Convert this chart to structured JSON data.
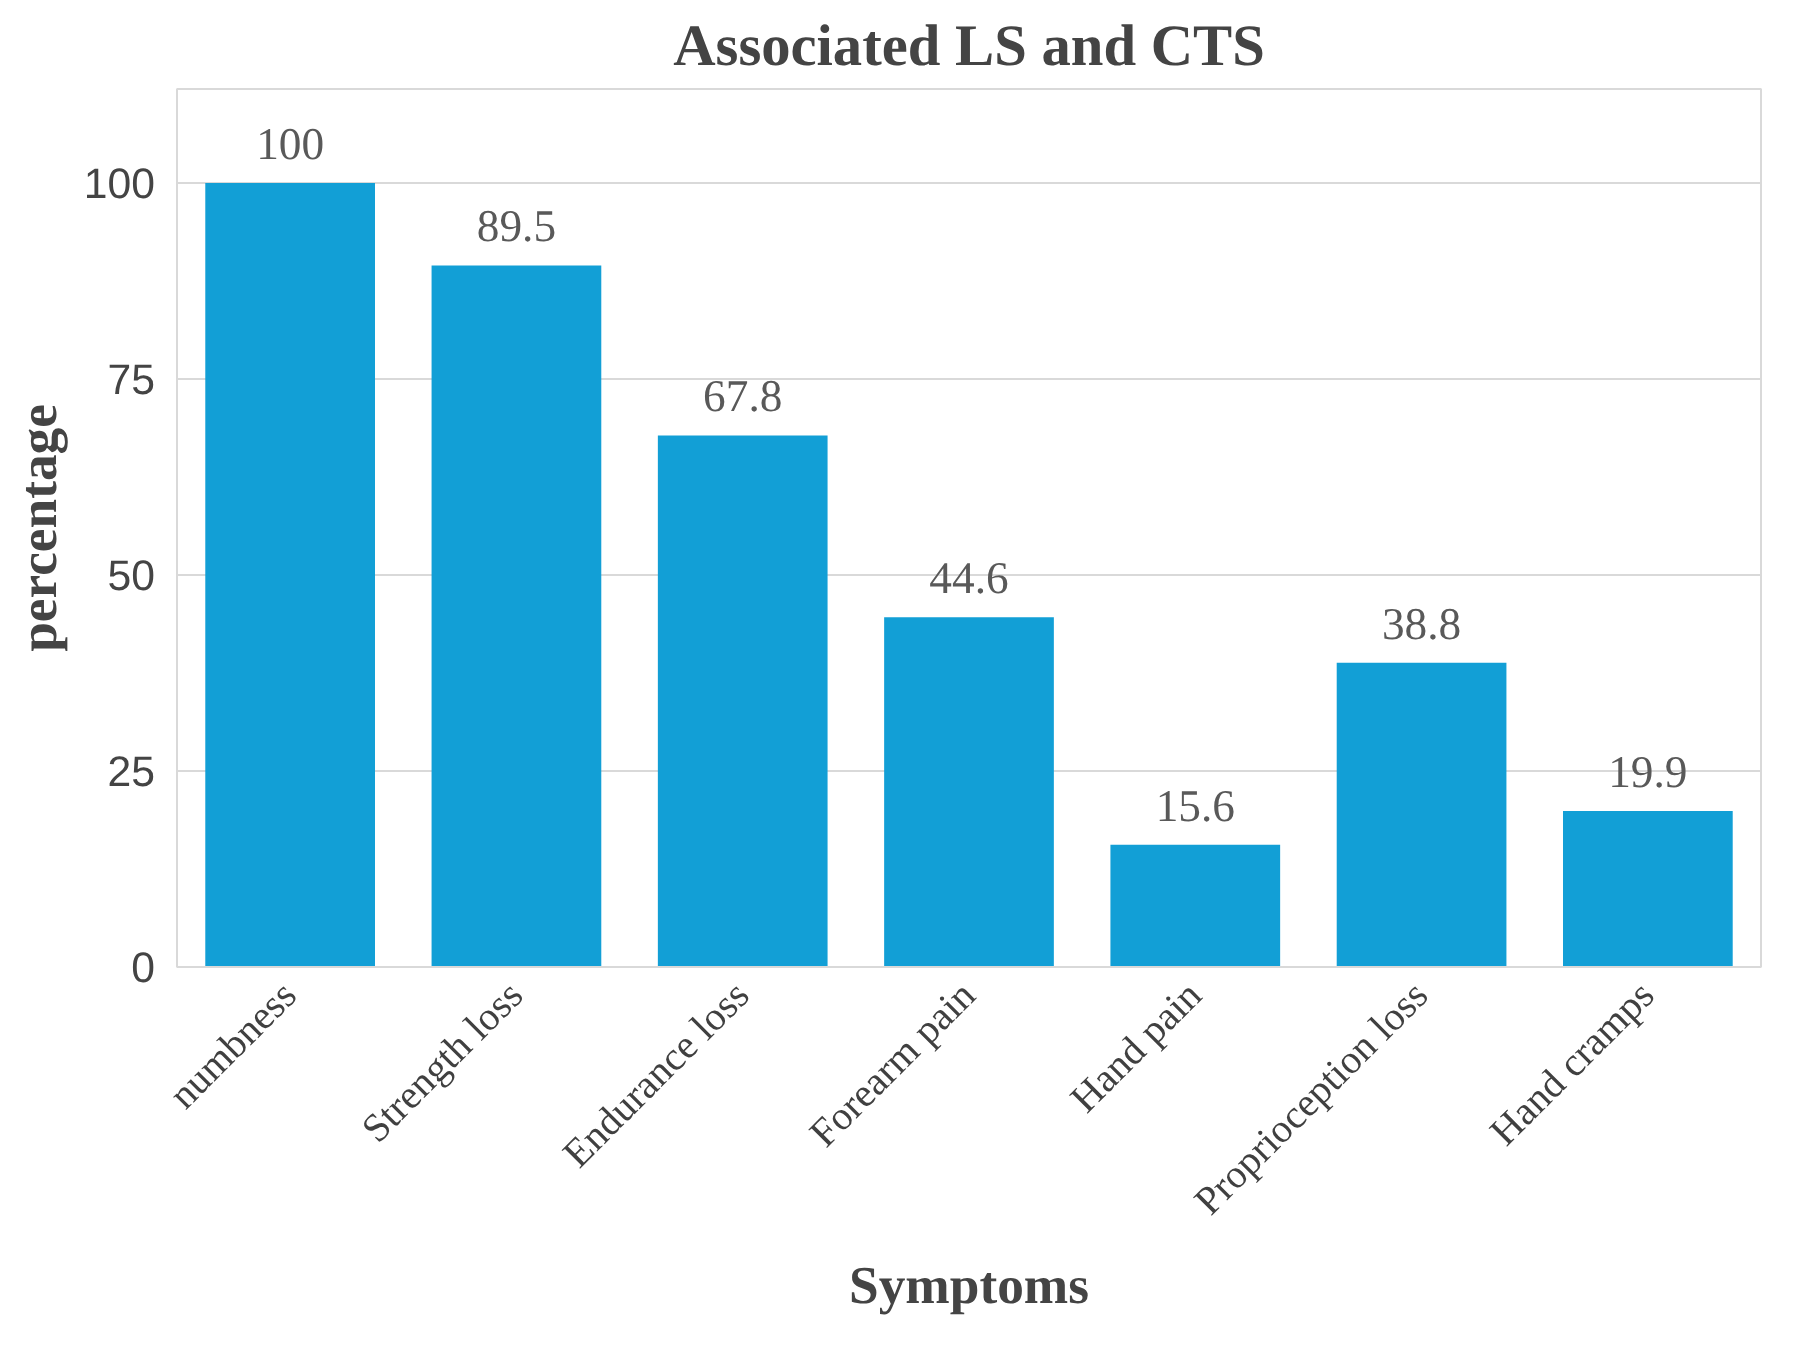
{
  "chart_data": {
    "type": "bar",
    "title": "Associated LS and CTS",
    "xlabel": "Symptoms",
    "ylabel": "percentage",
    "categories": [
      "numbness",
      "Strength loss",
      "Endurance loss",
      "Forearm pain",
      "Hand pain",
      "Proprioception loss",
      "Hand cramps"
    ],
    "values": [
      100,
      89.5,
      67.8,
      44.6,
      15.6,
      38.8,
      19.9
    ],
    "color": "#129fd6",
    "ylim": [
      0,
      100
    ],
    "yticks": [
      0,
      25,
      50,
      75,
      100
    ],
    "grid": "y",
    "data_labels": true
  }
}
